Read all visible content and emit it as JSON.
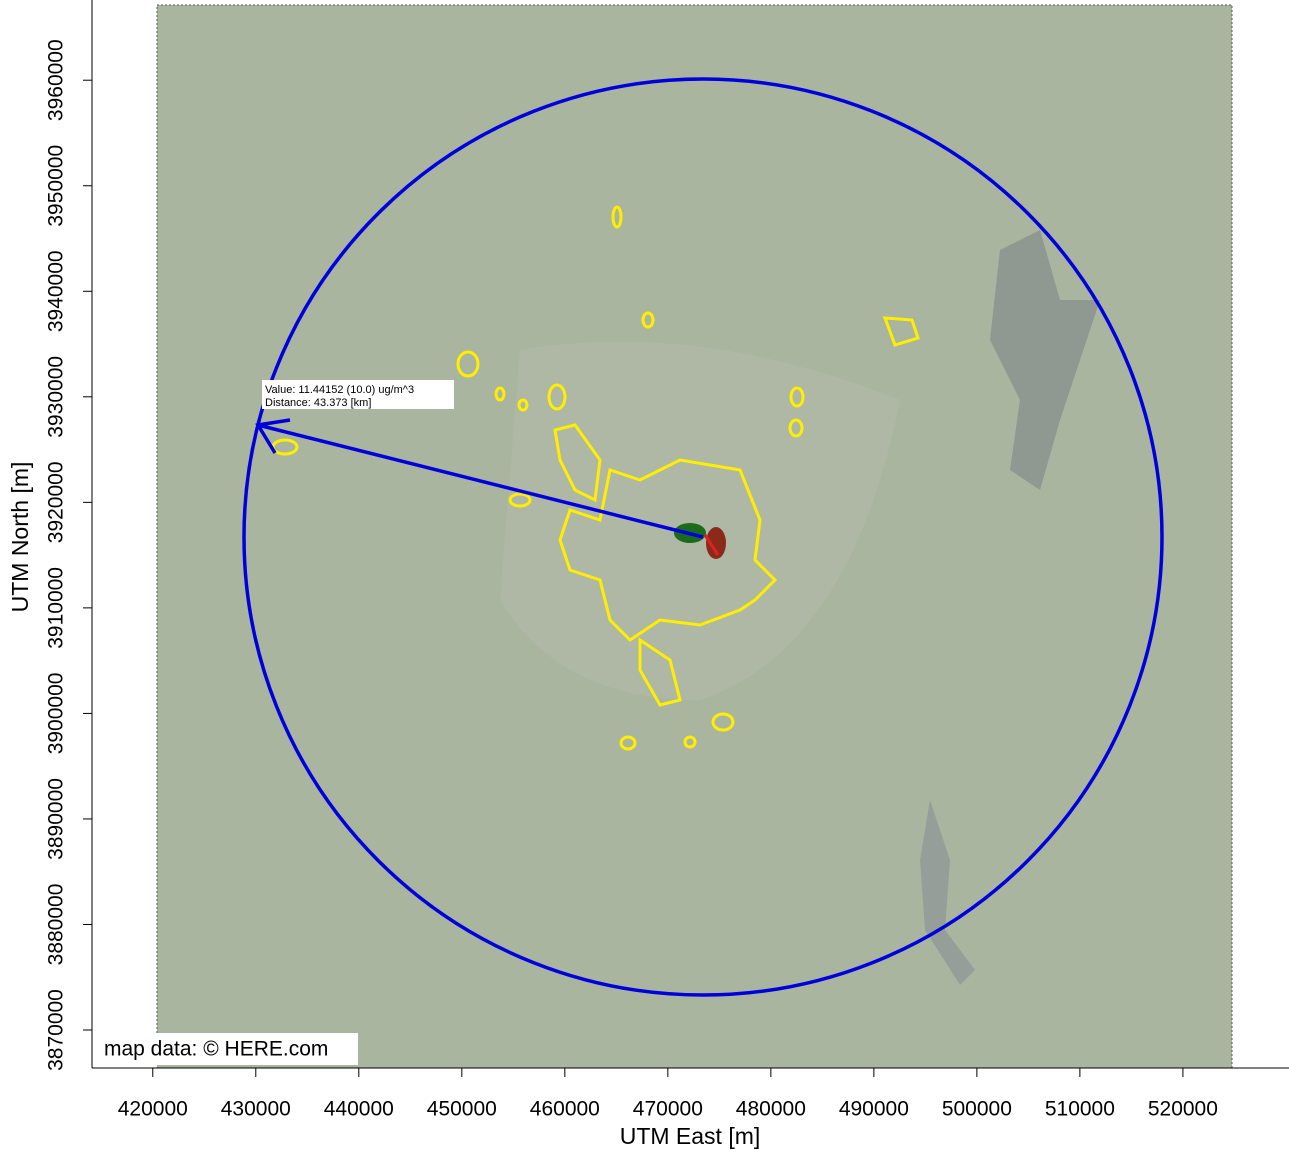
{
  "chart_data": {
    "type": "map",
    "annotation": {
      "value": "Value: 11.44152 (10.0) ug/m^3",
      "distance": "Distance: 43.373 [km]"
    },
    "attribution": "map data: © HERE.com",
    "xlabel": "UTM East [m]",
    "ylabel": "UTM North [m]",
    "xlim": [
      414100,
      530300
    ],
    "ylim": [
      3866400,
      3967600
    ],
    "xticks": [
      420000,
      430000,
      440000,
      450000,
      460000,
      470000,
      480000,
      490000,
      500000,
      510000,
      520000
    ],
    "yticks": [
      3870000,
      3880000,
      3890000,
      3900000,
      3910000,
      3920000,
      3930000,
      3940000,
      3950000,
      3960000
    ]
  }
}
